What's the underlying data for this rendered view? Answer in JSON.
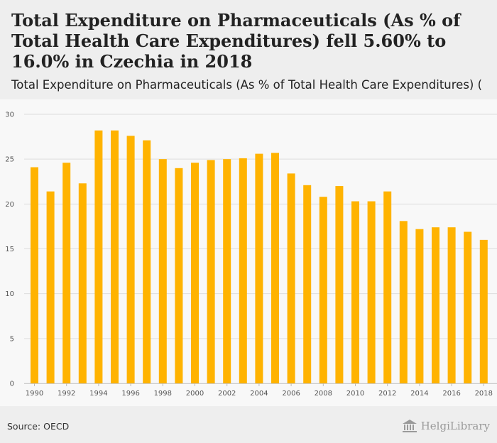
{
  "headline": "Total Expenditure on Pharmaceuticals (As % of Total Health Care Expenditures) fell 5.60% to 16.0% in Czechia in 2018",
  "subtitle": "Total Expenditure on Pharmaceuticals (As % of Total Health Care Expenditures) (",
  "source": "Source: OECD",
  "brand": {
    "name": "HelgiLibrary",
    "icon": "library-columns-icon"
  },
  "colors": {
    "bar": "#ffb300",
    "header_bg": "#eeeeee",
    "plot_bg": "#f8f8f8",
    "grid": "#dddddd"
  },
  "chart_data": {
    "type": "bar",
    "categories": [
      "1990",
      "1991",
      "1992",
      "1993",
      "1994",
      "1995",
      "1996",
      "1997",
      "1998",
      "1999",
      "2000",
      "2001",
      "2002",
      "2003",
      "2004",
      "2005",
      "2006",
      "2007",
      "2008",
      "2009",
      "2010",
      "2011",
      "2012",
      "2013",
      "2014",
      "2015",
      "2016",
      "2017",
      "2018"
    ],
    "x_tick_labels": [
      "1990",
      "1992",
      "1994",
      "1996",
      "1998",
      "2000",
      "2002",
      "2004",
      "2006",
      "2008",
      "2010",
      "2012",
      "2014",
      "2016",
      "2018"
    ],
    "values": [
      24.1,
      21.4,
      24.6,
      22.3,
      28.2,
      28.2,
      27.6,
      27.1,
      25.0,
      24.0,
      24.6,
      24.9,
      25.0,
      25.1,
      25.6,
      25.7,
      23.4,
      22.1,
      20.8,
      22.0,
      20.3,
      20.3,
      21.4,
      18.1,
      17.2,
      17.4,
      17.4,
      16.9,
      16.0
    ],
    "y_ticks": [
      0,
      5,
      10,
      15,
      20,
      25,
      30
    ],
    "ylim": [
      0,
      30
    ],
    "grid": true,
    "legend": "none"
  }
}
